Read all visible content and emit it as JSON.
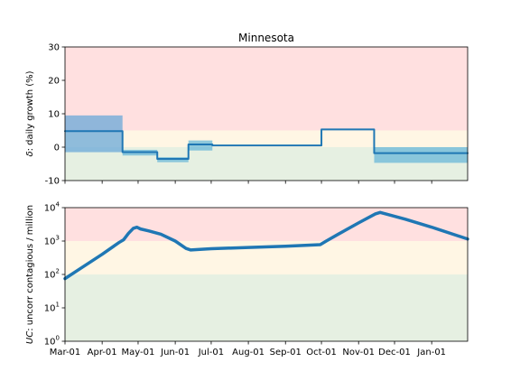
{
  "chart_data": [
    {
      "type": "line",
      "title": "Minnesota",
      "ylabel": "δ: daily growth (%)",
      "ylabel_symbol": "δ",
      "ylabel_rest": ": daily growth (%)",
      "ylim": [
        -10,
        30
      ],
      "yticks": [
        -10,
        0,
        10,
        20,
        30
      ],
      "xlim": [
        "2020-03-01",
        "2021-01-31"
      ],
      "background_bands": [
        {
          "y0": 5,
          "y1": 30,
          "color": "#ffe0e0"
        },
        {
          "y0": 0,
          "y1": 5,
          "color": "#fff6e4"
        },
        {
          "y0": -10,
          "y1": 0,
          "color": "#e6f0e2"
        }
      ],
      "uncertainty_bands": [
        {
          "x0": "2020-03-01",
          "x1": "2020-04-18",
          "y0": -1.5,
          "y1": 9.5,
          "color": "#6aa8d8"
        },
        {
          "x0": "2020-04-18",
          "x1": "2020-05-17",
          "y0": -2.5,
          "y1": -0.8,
          "color": "#6ab8d8"
        },
        {
          "x0": "2020-05-17",
          "x1": "2020-06-12",
          "y0": -4.5,
          "y1": -3.0,
          "color": "#6ab8d8"
        },
        {
          "x0": "2020-06-12",
          "x1": "2020-07-02",
          "y0": -1.0,
          "y1": 2.0,
          "color": "#6ab8d8"
        },
        {
          "x0": "2020-11-14",
          "x1": "2021-01-31",
          "y0": -4.7,
          "y1": 0.0,
          "color": "#6ab8d8"
        }
      ],
      "series": [
        {
          "color": "#1f77b4",
          "step_points": [
            [
              "2020-03-01",
              4.8
            ],
            [
              "2020-04-18",
              4.8
            ],
            [
              "2020-04-18",
              -1.5
            ],
            [
              "2020-05-17",
              -1.5
            ],
            [
              "2020-05-17",
              -3.5
            ],
            [
              "2020-06-12",
              -3.5
            ],
            [
              "2020-06-12",
              0.8
            ],
            [
              "2020-07-02",
              0.8
            ],
            [
              "2020-07-02",
              0.5
            ],
            [
              "2020-10-01",
              0.5
            ],
            [
              "2020-10-01",
              5.3
            ],
            [
              "2020-11-14",
              5.3
            ],
            [
              "2020-11-14",
              -1.8
            ],
            [
              "2021-01-31",
              -1.8
            ]
          ]
        }
      ]
    },
    {
      "type": "line",
      "ylabel": "UC: uncorr contagious / million",
      "ylabel_symbol": "UC",
      "ylabel_rest": ": uncorr contagious / million",
      "yscale": "log",
      "ylim": [
        1,
        10000
      ],
      "yticks": [
        {
          "base": "10",
          "exp": "0"
        },
        {
          "base": "10",
          "exp": "1"
        },
        {
          "base": "10",
          "exp": "2"
        },
        {
          "base": "10",
          "exp": "3"
        },
        {
          "base": "10",
          "exp": "4"
        }
      ],
      "xlim": [
        "2020-03-01",
        "2021-01-31"
      ],
      "xtick_labels": [
        "Mar-01",
        "Apr-01",
        "May-01",
        "Jun-01",
        "Jul-01",
        "Aug-01",
        "Sep-01",
        "Oct-01",
        "Nov-01",
        "Dec-01",
        "Jan-01"
      ],
      "xtick_dates": [
        "2020-03-01",
        "2020-04-01",
        "2020-05-01",
        "2020-06-01",
        "2020-07-01",
        "2020-08-01",
        "2020-09-01",
        "2020-10-01",
        "2020-11-01",
        "2020-12-01",
        "2021-01-01"
      ],
      "background_bands": [
        {
          "y0": 1000,
          "y1": 10000,
          "color": "#ffe0e0"
        },
        {
          "y0": 100,
          "y1": 1000,
          "color": "#fff6e4"
        },
        {
          "y0": 1,
          "y1": 100,
          "color": "#e6f0e2"
        }
      ],
      "series": [
        {
          "color": "#1f77b4",
          "points": [
            [
              "2020-03-01",
              75
            ],
            [
              "2020-03-15",
              160
            ],
            [
              "2020-04-01",
              400
            ],
            [
              "2020-04-15",
              900
            ],
            [
              "2020-04-19",
              1100
            ],
            [
              "2020-04-23",
              1700
            ],
            [
              "2020-04-27",
              2400
            ],
            [
              "2020-04-30",
              2600
            ],
            [
              "2020-05-03",
              2300
            ],
            [
              "2020-05-10",
              2000
            ],
            [
              "2020-05-20",
              1600
            ],
            [
              "2020-06-01",
              1000
            ],
            [
              "2020-06-10",
              600
            ],
            [
              "2020-06-14",
              540
            ],
            [
              "2020-06-20",
              560
            ],
            [
              "2020-07-01",
              590
            ],
            [
              "2020-08-01",
              640
            ],
            [
              "2020-09-01",
              700
            ],
            [
              "2020-09-30",
              780
            ],
            [
              "2020-10-05",
              1000
            ],
            [
              "2020-10-15",
              1600
            ],
            [
              "2020-11-01",
              3500
            ],
            [
              "2020-11-15",
              6500
            ],
            [
              "2020-11-19",
              7200
            ],
            [
              "2020-11-25",
              6300
            ],
            [
              "2020-12-10",
              4500
            ],
            [
              "2021-01-01",
              2600
            ],
            [
              "2021-01-31",
              1150
            ]
          ]
        }
      ]
    }
  ]
}
